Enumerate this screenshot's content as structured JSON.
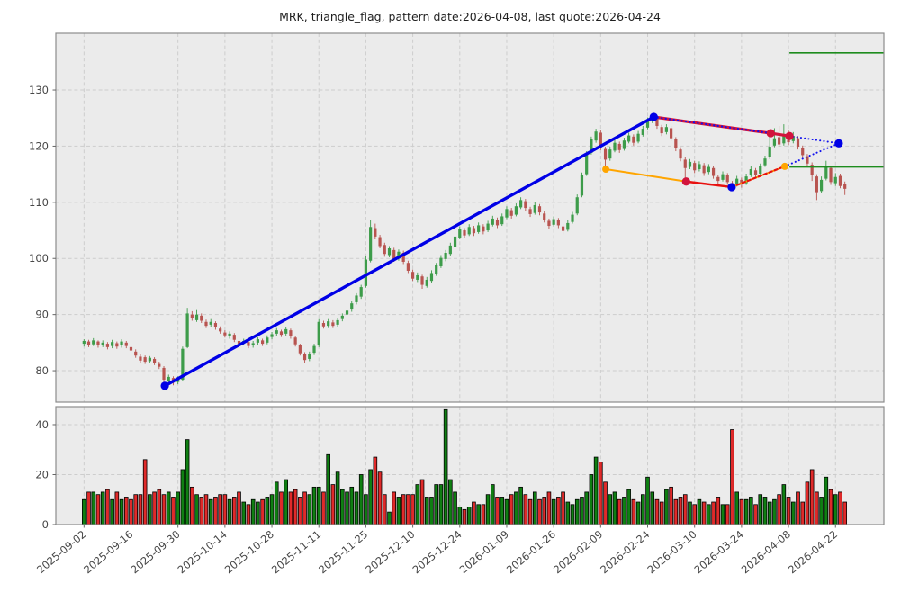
{
  "title": "MRK, triangle_flag, pattern date:2026-04-08, last quote:2026-04-24",
  "meta": {
    "symbol": "MRK",
    "pattern_name": "triangle_flag",
    "pattern_date": "2026-04-08",
    "last_quote_date": "2026-04-24"
  },
  "colors": {
    "panel_bg": "#ebebeb",
    "grid": "#cdcdcd",
    "panel_border": "#8c8c8c",
    "tick_text": "#464646",
    "candle_up": "#3d9c4a",
    "candle_down": "#b85450",
    "volume_up": "#0f7f12",
    "volume_down": "#e02a2a",
    "volume_edge": "#000000",
    "trend_blue": "#0000e6",
    "flag_red": "#d2143c",
    "overlay_red": "#e81010",
    "flag_orange": "#ffa500",
    "dotted_blue": "#1111ee",
    "target_green": "#1e8c1e"
  },
  "chart_data": {
    "type": "candlestick+volume",
    "title": "MRK, triangle_flag, pattern date:2026-04-08, last quote:2026-04-24",
    "grid": true,
    "legend": "none",
    "x_axis": {
      "range": [
        -6,
        170.3
      ],
      "tick_indices": [
        0,
        10,
        20,
        30,
        40,
        50,
        60,
        70,
        80,
        90,
        100,
        110,
        120,
        130,
        140,
        150,
        160
      ],
      "tick_labels": [
        "2025-09-02",
        "2025-09-16",
        "2025-09-30",
        "2025-10-14",
        "2025-10-28",
        "2025-11-11",
        "2025-11-25",
        "2025-12-10",
        "2025-12-24",
        "2026-01-09",
        "2026-01-26",
        "2026-02-09",
        "2026-02-24",
        "2026-03-10",
        "2026-03-24",
        "2026-04-08",
        "2026-04-22"
      ]
    },
    "price_axis": {
      "range": [
        74.4,
        140.1
      ],
      "ticks": [
        80,
        90,
        100,
        110,
        120,
        130
      ]
    },
    "volume_axis": {
      "range": [
        0,
        47.2
      ],
      "ticks": [
        0,
        20,
        40
      ]
    },
    "candles": [
      [
        84.8,
        85.6,
        84.3,
        85.3
      ],
      [
        85.2,
        85.5,
        84.2,
        84.6
      ],
      [
        84.7,
        85.8,
        84.4,
        85.4
      ],
      [
        85.2,
        85.4,
        84.1,
        84.5
      ],
      [
        84.6,
        85.4,
        84.2,
        85.0
      ],
      [
        84.8,
        85.1,
        83.8,
        84.2
      ],
      [
        84.4,
        85.5,
        84.0,
        85.1
      ],
      [
        84.9,
        85.2,
        83.9,
        84.3
      ],
      [
        84.5,
        85.6,
        84.1,
        85.2
      ],
      [
        85.0,
        85.3,
        84.0,
        84.4
      ],
      [
        84.2,
        84.6,
        83.2,
        83.6
      ],
      [
        83.4,
        83.8,
        82.3,
        82.7
      ],
      [
        82.5,
        82.9,
        81.4,
        81.8
      ],
      [
        82.4,
        82.7,
        81.2,
        81.6
      ],
      [
        81.7,
        82.6,
        81.3,
        82.3
      ],
      [
        82.1,
        82.4,
        81.0,
        81.4
      ],
      [
        81.2,
        81.6,
        80.3,
        80.7
      ],
      [
        80.5,
        80.8,
        77.3,
        78.4
      ],
      [
        78.2,
        79.3,
        77.7,
        78.9
      ],
      [
        78.7,
        79.0,
        77.4,
        77.9
      ],
      [
        78.0,
        79.0,
        77.6,
        78.6
      ],
      [
        78.4,
        84.3,
        78.2,
        83.9
      ],
      [
        84.2,
        91.2,
        84.0,
        90.2
      ],
      [
        90.0,
        90.6,
        88.9,
        89.3
      ],
      [
        89.0,
        90.8,
        88.7,
        90.0
      ],
      [
        89.8,
        90.2,
        88.5,
        88.9
      ],
      [
        88.7,
        89.1,
        87.6,
        88.0
      ],
      [
        88.2,
        89.2,
        87.8,
        88.7
      ],
      [
        88.5,
        88.8,
        87.3,
        87.7
      ],
      [
        87.5,
        87.9,
        86.6,
        87.0
      ],
      [
        86.8,
        87.2,
        85.9,
        86.3
      ],
      [
        86.1,
        87.0,
        85.7,
        86.6
      ],
      [
        86.4,
        86.7,
        85.1,
        85.5
      ],
      [
        85.3,
        85.7,
        84.4,
        84.8
      ],
      [
        84.9,
        85.7,
        84.5,
        85.3
      ],
      [
        85.1,
        85.4,
        84.0,
        84.4
      ],
      [
        84.5,
        85.3,
        84.1,
        84.9
      ],
      [
        85.0,
        86.0,
        84.6,
        85.6
      ],
      [
        85.4,
        85.7,
        84.4,
        84.8
      ],
      [
        85.0,
        86.3,
        84.7,
        85.9
      ],
      [
        86.0,
        86.9,
        85.6,
        86.5
      ],
      [
        86.6,
        87.6,
        86.2,
        87.2
      ],
      [
        87.0,
        87.3,
        86.0,
        86.4
      ],
      [
        86.6,
        87.8,
        86.2,
        87.4
      ],
      [
        87.2,
        87.5,
        85.7,
        86.1
      ],
      [
        85.9,
        86.2,
        84.3,
        84.7
      ],
      [
        84.5,
        84.8,
        82.7,
        83.1
      ],
      [
        82.9,
        83.3,
        81.3,
        81.9
      ],
      [
        82.1,
        83.4,
        81.7,
        83.0
      ],
      [
        83.2,
        84.8,
        82.8,
        84.4
      ],
      [
        84.6,
        89.2,
        84.2,
        88.7
      ],
      [
        88.5,
        88.9,
        87.5,
        87.9
      ],
      [
        88.0,
        89.2,
        87.6,
        88.8
      ],
      [
        88.6,
        89.0,
        87.6,
        88.0
      ],
      [
        88.2,
        89.4,
        87.8,
        89.0
      ],
      [
        89.2,
        90.2,
        88.8,
        89.8
      ],
      [
        90.0,
        91.1,
        89.6,
        90.7
      ],
      [
        90.9,
        92.4,
        90.5,
        92.0
      ],
      [
        92.2,
        93.8,
        91.8,
        93.4
      ],
      [
        93.2,
        95.3,
        92.8,
        94.9
      ],
      [
        95.1,
        100.4,
        94.8,
        99.8
      ],
      [
        99.6,
        106.8,
        99.3,
        105.6
      ],
      [
        105.4,
        106.2,
        103.4,
        103.9
      ],
      [
        103.8,
        104.2,
        101.8,
        102.2
      ],
      [
        102.4,
        102.8,
        100.3,
        100.8
      ],
      [
        100.6,
        102.2,
        100.2,
        101.8
      ],
      [
        101.5,
        101.9,
        99.4,
        99.8
      ],
      [
        100.0,
        101.6,
        99.6,
        101.2
      ],
      [
        101.0,
        101.4,
        99.0,
        99.4
      ],
      [
        99.2,
        99.6,
        97.4,
        97.8
      ],
      [
        97.6,
        98.0,
        96.0,
        96.4
      ],
      [
        96.2,
        97.5,
        95.8,
        97.0
      ],
      [
        96.8,
        97.1,
        94.6,
        95.3
      ],
      [
        95.1,
        96.7,
        94.8,
        96.2
      ],
      [
        96.0,
        97.9,
        95.7,
        97.4
      ],
      [
        97.2,
        99.2,
        96.9,
        98.8
      ],
      [
        98.6,
        100.6,
        98.3,
        100.1
      ],
      [
        99.9,
        101.5,
        99.5,
        101.0
      ],
      [
        100.8,
        102.8,
        100.5,
        102.3
      ],
      [
        102.1,
        104.4,
        101.8,
        103.9
      ],
      [
        103.7,
        105.7,
        103.4,
        105.2
      ],
      [
        105.0,
        105.4,
        103.6,
        104.1
      ],
      [
        104.3,
        106.1,
        104.0,
        105.6
      ],
      [
        105.4,
        105.8,
        104.0,
        104.5
      ],
      [
        104.7,
        106.4,
        104.4,
        105.9
      ],
      [
        105.7,
        106.1,
        104.3,
        104.8
      ],
      [
        105.0,
        106.7,
        104.7,
        106.2
      ],
      [
        106.0,
        107.6,
        105.7,
        107.1
      ],
      [
        106.9,
        107.3,
        105.4,
        105.9
      ],
      [
        106.1,
        108.0,
        105.8,
        107.5
      ],
      [
        107.3,
        109.3,
        107.0,
        108.8
      ],
      [
        108.6,
        109.0,
        107.1,
        107.6
      ],
      [
        107.8,
        109.8,
        107.5,
        109.3
      ],
      [
        109.1,
        110.9,
        108.8,
        110.4
      ],
      [
        110.2,
        110.6,
        108.5,
        109.0
      ],
      [
        108.8,
        109.2,
        107.4,
        107.9
      ],
      [
        108.1,
        110.0,
        107.8,
        109.5
      ],
      [
        109.3,
        109.7,
        107.7,
        108.2
      ],
      [
        108.0,
        108.4,
        106.4,
        106.9
      ],
      [
        106.7,
        107.1,
        105.3,
        105.8
      ],
      [
        106.0,
        107.5,
        105.7,
        107.0
      ],
      [
        106.8,
        107.2,
        105.4,
        105.9
      ],
      [
        105.7,
        106.1,
        104.3,
        104.9
      ],
      [
        105.1,
        106.8,
        104.8,
        106.3
      ],
      [
        106.5,
        108.3,
        106.2,
        107.8
      ],
      [
        108.0,
        111.4,
        107.7,
        110.9
      ],
      [
        111.2,
        115.3,
        110.9,
        114.8
      ],
      [
        115.0,
        119.1,
        114.7,
        118.6
      ],
      [
        118.8,
        121.7,
        118.5,
        121.2
      ],
      [
        121.0,
        123.1,
        120.6,
        122.6
      ],
      [
        122.4,
        122.8,
        119.3,
        119.8
      ],
      [
        119.5,
        119.9,
        115.9,
        117.6
      ],
      [
        117.8,
        119.9,
        117.4,
        119.4
      ],
      [
        119.2,
        121.1,
        118.9,
        120.6
      ],
      [
        120.4,
        120.8,
        118.8,
        119.3
      ],
      [
        119.5,
        121.5,
        119.2,
        121.0
      ],
      [
        120.8,
        122.4,
        120.5,
        121.9
      ],
      [
        121.7,
        122.1,
        120.1,
        120.6
      ],
      [
        120.8,
        122.7,
        120.5,
        122.2
      ],
      [
        122.0,
        123.6,
        121.7,
        123.1
      ],
      [
        123.3,
        125.1,
        123.0,
        124.6
      ],
      [
        124.4,
        125.6,
        124.1,
        125.1
      ],
      [
        124.9,
        125.3,
        123.1,
        123.6
      ],
      [
        123.4,
        123.8,
        121.8,
        122.3
      ],
      [
        122.5,
        123.9,
        122.1,
        123.4
      ],
      [
        123.2,
        123.6,
        120.9,
        121.4
      ],
      [
        121.2,
        121.6,
        119.1,
        119.6
      ],
      [
        119.4,
        119.8,
        117.3,
        117.8
      ],
      [
        117.6,
        118.0,
        113.9,
        116.1
      ],
      [
        116.3,
        117.7,
        115.9,
        117.2
      ],
      [
        117.0,
        117.4,
        115.2,
        115.7
      ],
      [
        115.9,
        117.3,
        115.5,
        116.8
      ],
      [
        116.6,
        117.0,
        114.7,
        115.2
      ],
      [
        115.4,
        116.8,
        115.0,
        116.3
      ],
      [
        116.1,
        116.5,
        114.2,
        114.7
      ],
      [
        114.5,
        114.9,
        113.0,
        113.8
      ],
      [
        114.0,
        115.5,
        113.7,
        115.0
      ],
      [
        114.8,
        115.2,
        113.1,
        113.6
      ],
      [
        113.4,
        113.8,
        112.4,
        112.9
      ],
      [
        113.1,
        114.7,
        112.8,
        114.2
      ],
      [
        114.0,
        114.4,
        112.6,
        113.2
      ],
      [
        113.4,
        115.1,
        113.1,
        114.6
      ],
      [
        114.8,
        116.4,
        114.5,
        115.9
      ],
      [
        115.7,
        116.1,
        114.4,
        114.9
      ],
      [
        115.1,
        116.9,
        114.8,
        116.4
      ],
      [
        116.6,
        118.3,
        116.3,
        117.8
      ],
      [
        118.0,
        122.0,
        117.7,
        119.9
      ],
      [
        120.1,
        123.2,
        119.8,
        121.4
      ],
      [
        121.6,
        123.6,
        119.9,
        120.3
      ],
      [
        120.5,
        123.9,
        120.1,
        122.0
      ],
      [
        121.8,
        122.8,
        120.2,
        120.7
      ],
      [
        120.9,
        122.5,
        120.5,
        121.8
      ],
      [
        121.4,
        121.8,
        119.4,
        119.9
      ],
      [
        119.7,
        120.1,
        117.9,
        118.4
      ],
      [
        118.2,
        118.6,
        116.4,
        116.9
      ],
      [
        116.7,
        117.1,
        113.8,
        114.8
      ],
      [
        114.6,
        115.0,
        110.4,
        111.8
      ],
      [
        112.0,
        114.6,
        111.6,
        114.0
      ],
      [
        114.2,
        117.4,
        113.9,
        116.3
      ],
      [
        116.1,
        116.5,
        113.1,
        113.6
      ],
      [
        113.4,
        115.2,
        112.9,
        114.5
      ],
      [
        114.7,
        115.1,
        112.5,
        112.9
      ],
      [
        113.3,
        113.7,
        111.3,
        112.4
      ]
    ],
    "volumes": [
      10,
      13,
      13,
      12,
      13,
      14,
      10,
      13,
      10,
      11,
      10,
      12,
      12,
      26,
      12,
      13,
      14,
      12,
      13,
      11,
      13,
      22,
      34,
      15,
      12,
      11,
      12,
      10,
      11,
      12,
      12,
      10,
      11,
      13,
      9,
      8,
      10,
      9,
      10,
      11,
      12,
      17,
      13,
      18,
      13,
      14,
      11,
      13,
      12,
      15,
      15,
      13,
      28,
      16,
      21,
      14,
      13,
      15,
      13,
      20,
      12,
      22,
      27,
      21,
      12,
      5,
      13,
      11,
      12,
      12,
      12,
      16,
      18,
      11,
      11,
      16,
      16,
      46,
      18,
      13,
      7,
      6,
      7,
      9,
      8,
      8,
      12,
      16,
      11,
      11,
      10,
      12,
      13,
      15,
      12,
      10,
      13,
      10,
      11,
      13,
      10,
      11,
      13,
      9,
      8,
      10,
      11,
      13,
      20,
      27,
      25,
      17,
      12,
      13,
      10,
      11,
      14,
      10,
      9,
      12,
      19,
      13,
      10,
      9,
      14,
      15,
      10,
      11,
      12,
      9,
      8,
      10,
      9,
      8,
      9,
      11,
      8,
      8,
      38,
      13,
      10,
      10,
      11,
      8,
      12,
      11,
      9,
      10,
      12,
      16,
      11,
      9,
      13,
      9,
      17,
      22,
      13,
      11,
      19,
      14,
      12,
      13,
      9
    ],
    "overlays": {
      "trend_line_blue": {
        "points": [
          [
            17.2,
            77.3
          ],
          [
            121.3,
            125.2
          ]
        ]
      },
      "flag_upper_red": {
        "points": [
          [
            121.3,
            125.2
          ],
          [
            146.2,
            122.3
          ],
          [
            150.2,
            121.8
          ]
        ]
      },
      "flag_upper_blue_dotted": {
        "points": [
          [
            121.3,
            125.2
          ],
          [
            146.2,
            122.3
          ]
        ]
      },
      "flag_lower_orange": {
        "points": [
          [
            111.1,
            115.9
          ],
          [
            128.2,
            113.7
          ],
          [
            137.9,
            112.7
          ],
          [
            149.2,
            116.4
          ]
        ]
      },
      "flag_lower_red_solid": {
        "points": [
          [
            128.2,
            113.7
          ],
          [
            137.9,
            112.7
          ]
        ]
      },
      "flag_lower_red_dashed": {
        "points": [
          [
            137.9,
            112.7
          ],
          [
            149.2,
            116.4
          ]
        ]
      },
      "apex_dotted_upper": {
        "points": [
          [
            150.2,
            121.8
          ],
          [
            160.7,
            120.5
          ]
        ]
      },
      "apex_dotted_lower": {
        "points": [
          [
            149.2,
            116.4
          ],
          [
            160.7,
            120.5
          ]
        ]
      }
    },
    "markers": {
      "blue": [
        [
          17.2,
          77.3
        ],
        [
          121.3,
          125.2
        ],
        [
          137.9,
          112.7
        ],
        [
          160.7,
          120.5
        ]
      ],
      "red": [
        [
          128.2,
          113.7
        ],
        [
          146.2,
          122.3
        ],
        [
          150.2,
          121.8
        ]
      ],
      "orange": [
        [
          111.1,
          115.9
        ],
        [
          149.2,
          116.4
        ]
      ]
    },
    "target_lines": [
      {
        "price": 136.6,
        "from_index": 150.2,
        "to_index": 170.3
      },
      {
        "price": 116.3,
        "from_index": 150.2,
        "to_index": 170.3
      }
    ]
  }
}
